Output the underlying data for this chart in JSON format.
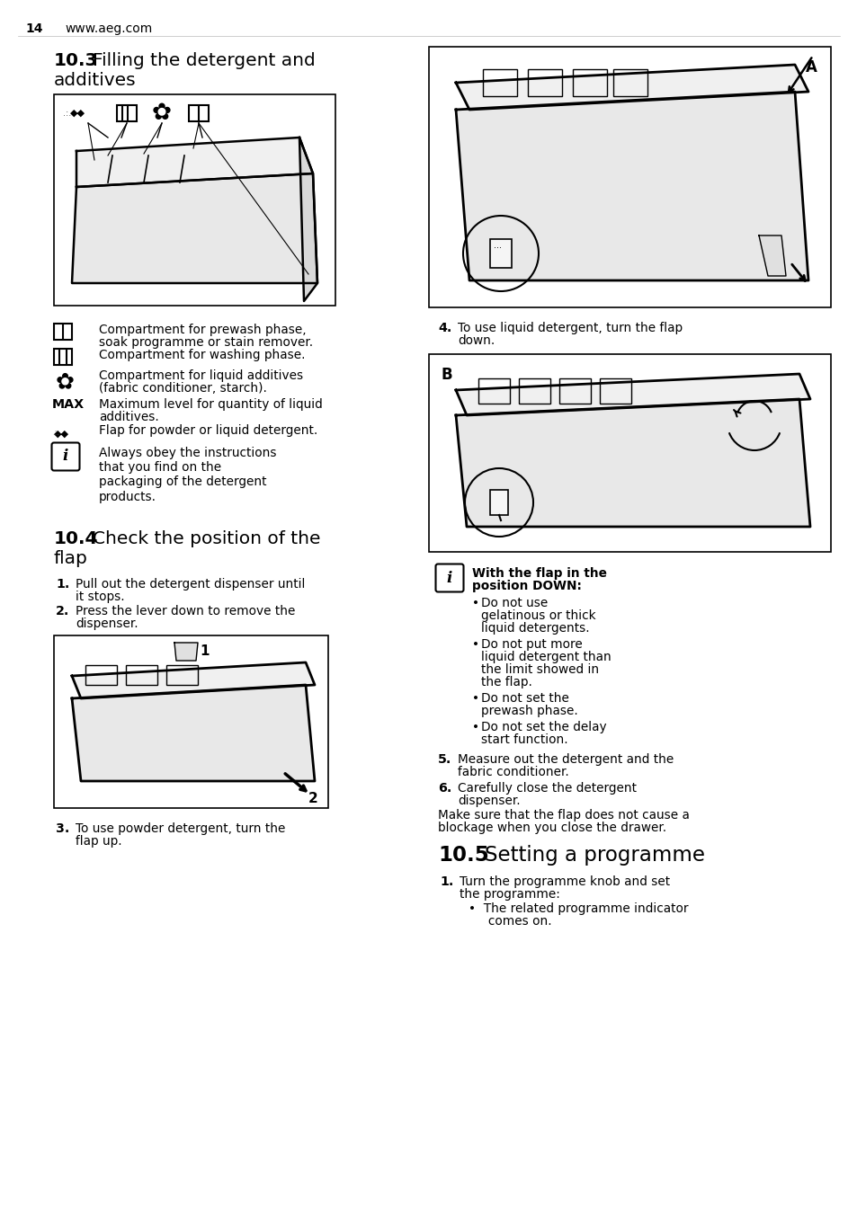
{
  "page_num": "14",
  "website": "www.aeg.com",
  "bg": "#ffffff",
  "fg": "#000000",
  "title_103_bold": "10.3",
  "title_103_rest": " Filling the detergent and\nadditives",
  "title_104_bold": "10.4",
  "title_104_rest": " Check the position of the\nflap",
  "title_105_bold": "10.5",
  "title_105_rest": " Setting a programme",
  "leg1a": "Compartment for prewash phase,",
  "leg1b": "soak programme or stain remover.",
  "leg1c": "Compartment for washing phase.",
  "leg2a": "Compartment for liquid additives",
  "leg2b": "(fabric conditioner, starch).",
  "leg3a": "Maximum level for quantity of liquid",
  "leg3b": "additives.",
  "leg4": "Flap for powder or liquid detergent.",
  "info103": "Always obey the instructions\nthat you find on the\npackaging of the detergent\nproducts.",
  "s104_1a": "Pull out the detergent dispenser until",
  "s104_1b": "it stops.",
  "s104_2a": "Press the lever down to remove the",
  "s104_2b": "dispenser.",
  "s104_3a": "To use powder detergent, turn the",
  "s104_3b": "flap up.",
  "s104_4a": "To use liquid detergent, turn the flap",
  "s104_4b": "down.",
  "info104_title1": "With the flap in the",
  "info104_title2": "position DOWN:",
  "b104_1a": "Do not use",
  "b104_1b": "gelatinous or thick",
  "b104_1c": "liquid detergents.",
  "b104_2a": "Do not put more",
  "b104_2b": "liquid detergent than",
  "b104_2c": "the limit showed in",
  "b104_2d": "the flap.",
  "b104_3a": "Do not set the",
  "b104_3b": "prewash phase.",
  "b104_4a": "Do not set the delay",
  "b104_4b": "start function.",
  "s104_5a": "Measure out the detergent and the",
  "s104_5b": "fabric conditioner.",
  "s104_6a": "Carefully close the detergent",
  "s104_6b": "dispenser.",
  "note104a": "Make sure that the flap does not cause a",
  "note104b": "blockage when you close the drawer.",
  "s105_1a": "Turn the programme knob and set",
  "s105_1b": "the programme:",
  "s105_b1a": "The related programme indicator",
  "s105_b1b": "comes on.",
  "lmargin": 60,
  "col2x": 487,
  "fs_body": 9.8,
  "fs_title": 14.5
}
